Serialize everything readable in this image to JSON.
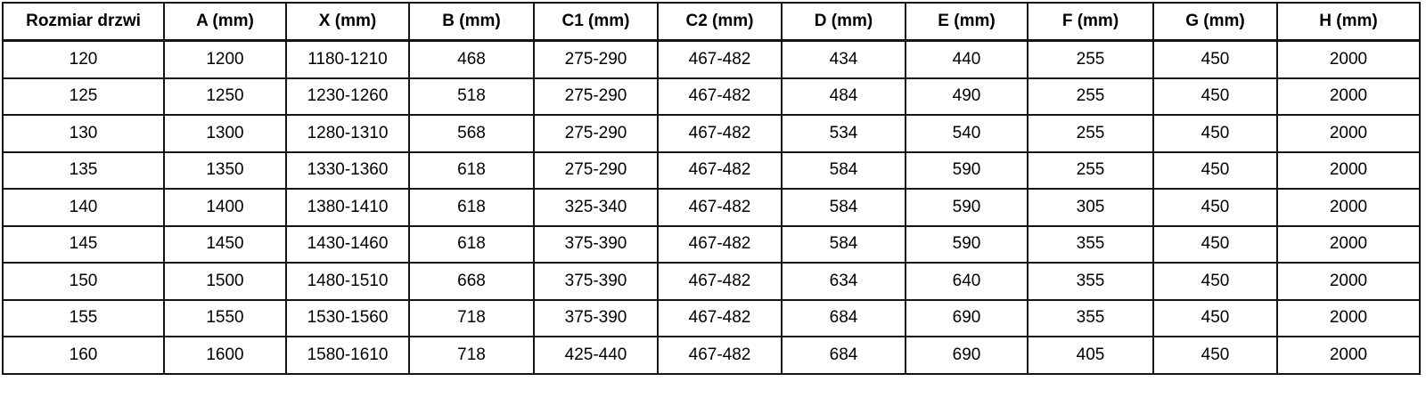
{
  "colors": {
    "background": "#ffffff",
    "border": "#141414",
    "text": "#000000"
  },
  "chart_data": {
    "type": "table",
    "title": "",
    "columns": [
      "Rozmiar drzwi",
      "A (mm)",
      "X (mm)",
      "B (mm)",
      "C1 (mm)",
      "C2 (mm)",
      "D (mm)",
      "E (mm)",
      "F (mm)",
      "G (mm)",
      "H (mm)"
    ],
    "rows": [
      [
        "120",
        "1200",
        "1180-1210",
        "468",
        "275-290",
        "467-482",
        "434",
        "440",
        "255",
        "450",
        "2000"
      ],
      [
        "125",
        "1250",
        "1230-1260",
        "518",
        "275-290",
        "467-482",
        "484",
        "490",
        "255",
        "450",
        "2000"
      ],
      [
        "130",
        "1300",
        "1280-1310",
        "568",
        "275-290",
        "467-482",
        "534",
        "540",
        "255",
        "450",
        "2000"
      ],
      [
        "135",
        "1350",
        "1330-1360",
        "618",
        "275-290",
        "467-482",
        "584",
        "590",
        "255",
        "450",
        "2000"
      ],
      [
        "140",
        "1400",
        "1380-1410",
        "618",
        "325-340",
        "467-482",
        "584",
        "590",
        "305",
        "450",
        "2000"
      ],
      [
        "145",
        "1450",
        "1430-1460",
        "618",
        "375-390",
        "467-482",
        "584",
        "590",
        "355",
        "450",
        "2000"
      ],
      [
        "150",
        "1500",
        "1480-1510",
        "668",
        "375-390",
        "467-482",
        "634",
        "640",
        "355",
        "450",
        "2000"
      ],
      [
        "155",
        "1550",
        "1530-1560",
        "718",
        "375-390",
        "467-482",
        "684",
        "690",
        "355",
        "450",
        "2000"
      ],
      [
        "160",
        "1600",
        "1580-1610",
        "718",
        "425-440",
        "467-482",
        "684",
        "690",
        "405",
        "450",
        "2000"
      ]
    ]
  }
}
